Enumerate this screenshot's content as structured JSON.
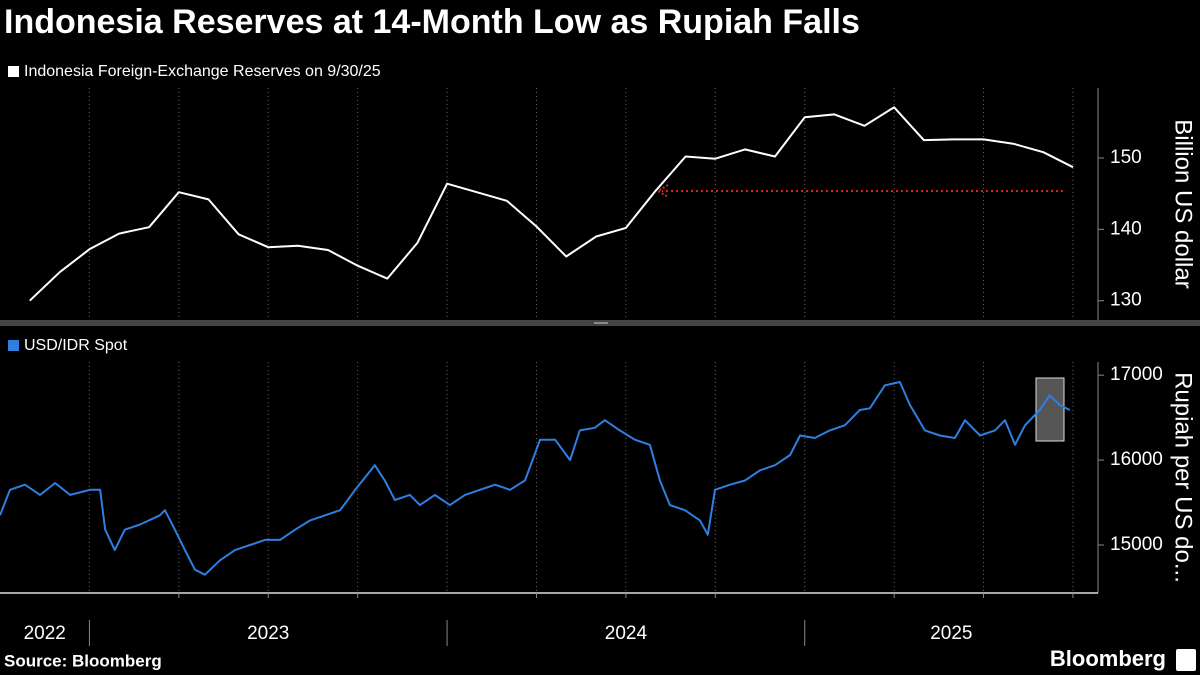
{
  "chart_data": [
    {
      "type": "line",
      "title": "Indonesia Reserves at 14-Month Low as Rupiah Falls",
      "y_label": "Billion US dollar",
      "xlim": [
        2022.75,
        2025.82
      ],
      "ylim": [
        127.3,
        159.8
      ],
      "yticks": [
        130,
        140,
        150
      ],
      "grid": true,
      "series": [
        {
          "name": "Indonesia Foreign-Exchange Reserves on 9/30/25",
          "color": "#ffffff",
          "x": [
            2022.833,
            2022.917,
            2023.0,
            2023.083,
            2023.167,
            2023.25,
            2023.333,
            2023.417,
            2023.5,
            2023.583,
            2023.667,
            2023.75,
            2023.833,
            2023.917,
            2024.0,
            2024.083,
            2024.167,
            2024.25,
            2024.333,
            2024.417,
            2024.5,
            2024.583,
            2024.667,
            2024.75,
            2024.833,
            2024.917,
            2025.0,
            2025.083,
            2025.167,
            2025.25,
            2025.333,
            2025.417,
            2025.5,
            2025.583,
            2025.667,
            2025.75
          ],
          "values": [
            130.0,
            134.0,
            137.2,
            139.4,
            140.3,
            145.2,
            144.2,
            139.3,
            137.5,
            137.7,
            137.1,
            134.9,
            133.1,
            138.1,
            146.4,
            145.2,
            144.0,
            140.4,
            136.2,
            139.0,
            140.2,
            145.4,
            150.2,
            149.9,
            151.2,
            150.2,
            155.7,
            156.1,
            154.5,
            157.1,
            152.5,
            152.6,
            152.6,
            152.0,
            150.8,
            148.7
          ]
        }
      ]
    },
    {
      "type": "line",
      "y_label": "Rupiah per US do...",
      "xlim": [
        2022.75,
        2025.82
      ],
      "xticks": [
        2022,
        2023,
        2024,
        2025
      ],
      "ylim": [
        14435,
        17155
      ],
      "yticks": [
        15000,
        16000,
        17000
      ],
      "grid": true,
      "series": [
        {
          "name": "USD/IDR Spot",
          "color": "#2f7fe0",
          "x": [
            2022.75,
            2022.778,
            2022.82,
            2022.862,
            2022.904,
            2022.946,
            2023.002,
            2023.03,
            2023.044,
            2023.071,
            2023.099,
            2023.141,
            2023.197,
            2023.211,
            2023.239,
            2023.267,
            2023.295,
            2023.323,
            2023.365,
            2023.407,
            2023.449,
            2023.491,
            2023.533,
            2023.575,
            2023.617,
            2023.659,
            2023.701,
            2023.743,
            2023.798,
            2023.826,
            2023.854,
            2023.896,
            2023.924,
            2023.966,
            2024.008,
            2024.05,
            2024.092,
            2024.134,
            2024.176,
            2024.218,
            2024.26,
            2024.302,
            2024.344,
            2024.371,
            2024.413,
            2024.441,
            2024.483,
            2024.525,
            2024.567,
            2024.595,
            2024.623,
            2024.665,
            2024.707,
            2024.729,
            2024.749,
            2024.791,
            2024.833,
            2024.875,
            2024.917,
            2024.959,
            2024.987,
            2025.028,
            2025.07,
            2025.112,
            2025.154,
            2025.182,
            2025.224,
            2025.266,
            2025.294,
            2025.336,
            2025.378,
            2025.42,
            2025.448,
            2025.49,
            2025.532,
            2025.56,
            2025.588,
            2025.616,
            2025.657,
            2025.685,
            2025.713,
            2025.741
          ],
          "values": [
            15350,
            15650,
            15710,
            15590,
            15730,
            15590,
            15650,
            15650,
            15180,
            14940,
            15180,
            15240,
            15350,
            15410,
            15180,
            14940,
            14710,
            14650,
            14820,
            14940,
            15000,
            15060,
            15060,
            15180,
            15290,
            15350,
            15410,
            15650,
            15940,
            15760,
            15530,
            15590,
            15470,
            15590,
            15470,
            15590,
            15650,
            15710,
            15650,
            15760,
            16240,
            16240,
            16000,
            16350,
            16380,
            16470,
            16350,
            16240,
            16180,
            15760,
            15470,
            15410,
            15290,
            15120,
            15650,
            15710,
            15760,
            15880,
            15940,
            16060,
            16290,
            16260,
            16350,
            16410,
            16590,
            16610,
            16880,
            16920,
            16650,
            16350,
            16290,
            16260,
            16470,
            16290,
            16350,
            16470,
            16180,
            16410,
            16590,
            16760,
            16650,
            16590
          ]
        }
      ]
    }
  ],
  "source": "Source: Bloomberg",
  "brand": "Bloomberg"
}
